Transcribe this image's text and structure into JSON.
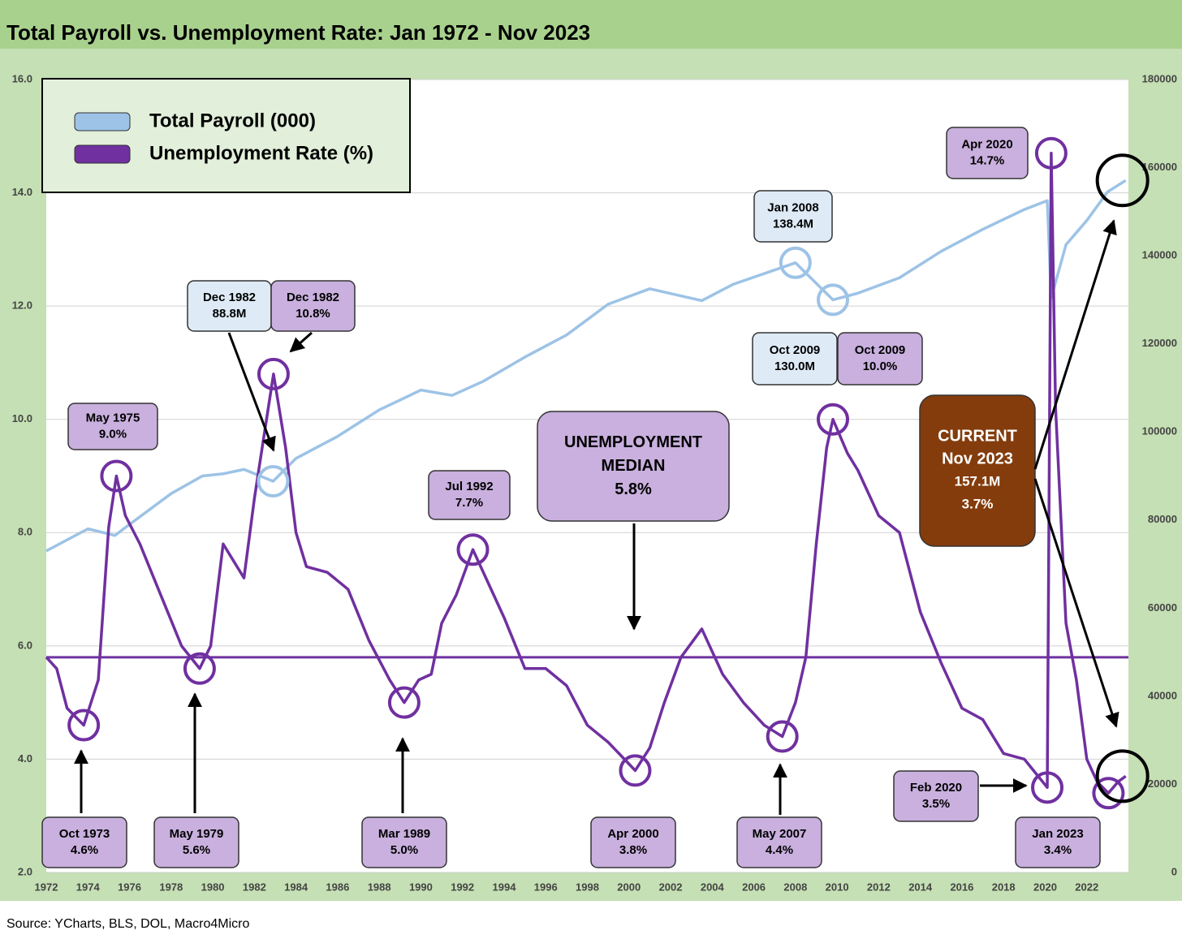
{
  "chart_data": {
    "type": "line",
    "title": "Total Payroll vs. Unemployment Rate: Jan 1972 - Nov 2023",
    "source": "Source: YCharts, BLS, DOL, Macro4Micro",
    "xlim": [
      1972,
      2024
    ],
    "xticks": [
      1972,
      1974,
      1976,
      1978,
      1980,
      1982,
      1984,
      1986,
      1988,
      1990,
      1992,
      1994,
      1996,
      1998,
      2000,
      2002,
      2004,
      2006,
      2008,
      2010,
      2012,
      2014,
      2016,
      2018,
      2020,
      2022
    ],
    "ylim": [
      2,
      16
    ],
    "yticks": [
      {
        "value": 2,
        "label": "2.0"
      },
      {
        "value": 4,
        "label": "4.0"
      },
      {
        "value": 6,
        "label": "6.0"
      },
      {
        "value": 8,
        "label": "8.0"
      },
      {
        "value": 10,
        "label": "10.0"
      },
      {
        "value": 12,
        "label": "12.0"
      },
      {
        "value": 14,
        "label": "14.0"
      },
      {
        "value": 16,
        "label": "16.0"
      }
    ],
    "y2lim": [
      0,
      180000
    ],
    "y2ticks": [
      0,
      20000,
      40000,
      60000,
      80000,
      100000,
      120000,
      140000,
      160000,
      180000
    ],
    "grid": true,
    "series": [
      {
        "name": "Total Payroll (000)",
        "color": "#9dc3e6",
        "axis": "y2",
        "x": [
          1972,
          1974,
          1975.3,
          1976,
          1978,
          1979.5,
          1980.5,
          1981.5,
          1982.9,
          1984,
          1986,
          1988,
          1990,
          1991.5,
          1993,
          1995,
          1997,
          1999,
          2001,
          2003.5,
          2005,
          2008,
          2009.8,
          2011,
          2013,
          2015,
          2017,
          2019,
          2020.1,
          2020.29,
          2021,
          2022,
          2023,
          2023.87
        ],
        "values": [
          73000,
          78000,
          76500,
          79000,
          86000,
          90000,
          90500,
          91500,
          88800,
          94000,
          99000,
          105000,
          109500,
          108300,
          111500,
          117000,
          122000,
          129000,
          132500,
          129800,
          133500,
          138400,
          130000,
          131500,
          135000,
          141000,
          146000,
          150500,
          152500,
          130400,
          142500,
          148000,
          154500,
          157100
        ]
      },
      {
        "name": "Unemployment Rate (%)",
        "color": "#7030a0",
        "x": [
          1972,
          1972.5,
          1973,
          1973.8,
          1974.5,
          1975,
          1975.37,
          1975.8,
          1976.5,
          1977.5,
          1978.5,
          1979.37,
          1979.9,
          1980.5,
          1981,
          1981.5,
          1982,
          1982.5,
          1982.92,
          1983.5,
          1984,
          1984.5,
          1985.5,
          1986.5,
          1987.5,
          1988.5,
          1989.2,
          1989.9,
          1990.5,
          1991,
          1991.7,
          1992.5,
          1993,
          1994,
          1995,
          1996,
          1997,
          1998,
          1999,
          2000.3,
          2001,
          2001.7,
          2002.5,
          2003.5,
          2004.5,
          2005.5,
          2006.5,
          2007.37,
          2008,
          2008.5,
          2009,
          2009.5,
          2009.8,
          2010.5,
          2011,
          2012,
          2013,
          2014,
          2015,
          2016,
          2017,
          2018,
          2019,
          2020.1,
          2020.29,
          2020.5,
          2021,
          2021.5,
          2022,
          2022.5,
          2023.04,
          2023.5,
          2023.87
        ],
        "values": [
          5.8,
          5.6,
          4.9,
          4.6,
          5.4,
          8.1,
          9.0,
          8.3,
          7.8,
          6.9,
          6.0,
          5.6,
          6.0,
          7.8,
          7.5,
          7.2,
          8.6,
          9.8,
          10.8,
          9.5,
          8.0,
          7.4,
          7.3,
          7.0,
          6.1,
          5.4,
          5.0,
          5.4,
          5.5,
          6.4,
          6.9,
          7.7,
          7.3,
          6.5,
          5.6,
          5.6,
          5.3,
          4.6,
          4.3,
          3.8,
          4.2,
          5.0,
          5.8,
          6.3,
          5.5,
          5.0,
          4.6,
          4.4,
          5.0,
          5.8,
          7.8,
          9.5,
          10.0,
          9.4,
          9.1,
          8.3,
          8.0,
          6.6,
          5.7,
          4.9,
          4.7,
          4.1,
          4.0,
          3.5,
          14.7,
          10.2,
          6.4,
          5.4,
          4.0,
          3.6,
          3.4,
          3.6,
          3.7
        ]
      }
    ],
    "median_line": 5.8,
    "annotations": [
      {
        "lines": [
          "May 1975",
          "9.0%"
        ]
      },
      {
        "lines": [
          "Dec 1982",
          "88.8M"
        ]
      },
      {
        "lines": [
          "Dec 1982",
          "10.8%"
        ]
      },
      {
        "lines": [
          "Jul 1992",
          "7.7%"
        ]
      },
      {
        "lines": [
          "UNEMPLOYMENT",
          "MEDIAN",
          "5.8%"
        ]
      },
      {
        "lines": [
          "Jan 2008",
          "138.4M"
        ]
      },
      {
        "lines": [
          "Oct 2009",
          "130.0M"
        ]
      },
      {
        "lines": [
          "Oct 2009",
          "10.0%"
        ]
      },
      {
        "lines": [
          "Apr 2020",
          "14.7%"
        ]
      },
      {
        "lines": [
          "CURRENT",
          "Nov 2023",
          "157.1M",
          "3.7%"
        ]
      },
      {
        "lines": [
          "Oct 1973",
          "4.6%"
        ]
      },
      {
        "lines": [
          "May 1979",
          "5.6%"
        ]
      },
      {
        "lines": [
          "Mar 1989",
          "5.0%"
        ]
      },
      {
        "lines": [
          "Apr 2000",
          "3.8%"
        ]
      },
      {
        "lines": [
          "May 2007",
          "4.4%"
        ]
      },
      {
        "lines": [
          "Feb 2020",
          "3.5%"
        ]
      },
      {
        "lines": [
          "Jan 2023",
          "3.4%"
        ]
      }
    ]
  }
}
